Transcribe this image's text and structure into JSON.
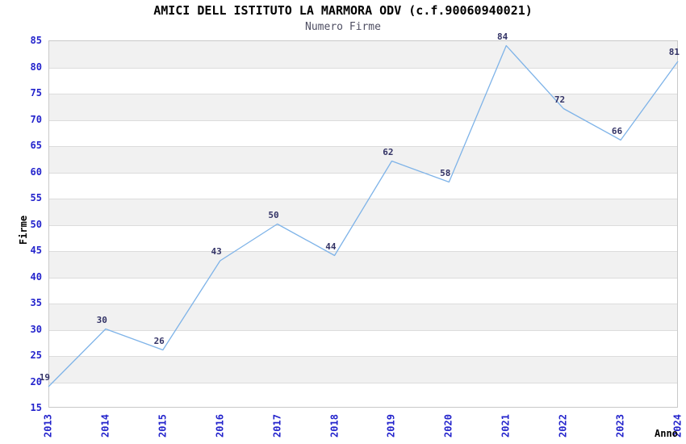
{
  "chart_data": {
    "type": "line",
    "title": "AMICI DELL ISTITUTO LA MARMORA ODV (c.f.90060940021)",
    "subtitle": "Numero Firme",
    "xlabel": "Anno",
    "ylabel": "Firme",
    "categories": [
      "2013",
      "2014",
      "2015",
      "2016",
      "2017",
      "2018",
      "2019",
      "2020",
      "2021",
      "2022",
      "2023",
      "2024"
    ],
    "values": [
      19,
      30,
      26,
      43,
      50,
      44,
      62,
      58,
      84,
      72,
      66,
      81
    ],
    "ylim": [
      15,
      85
    ],
    "ytick_step": 5,
    "yticks": [
      85,
      80,
      75,
      70,
      65,
      60,
      55,
      50,
      45,
      40,
      35,
      30,
      25,
      20,
      15
    ],
    "grid": "horizontal-alternating-bands",
    "legend": "none",
    "marker": "none",
    "colors": {
      "line": "#7eb3e8",
      "tick_labels": "#2323cc",
      "value_labels": "#333366",
      "band_gray": "#f1f1f1",
      "plot_border": "#c9c9c9",
      "gridline": "#dcdcdc",
      "title": "#000000",
      "subtitle": "#4f4f63",
      "background": "#ffffff"
    }
  }
}
